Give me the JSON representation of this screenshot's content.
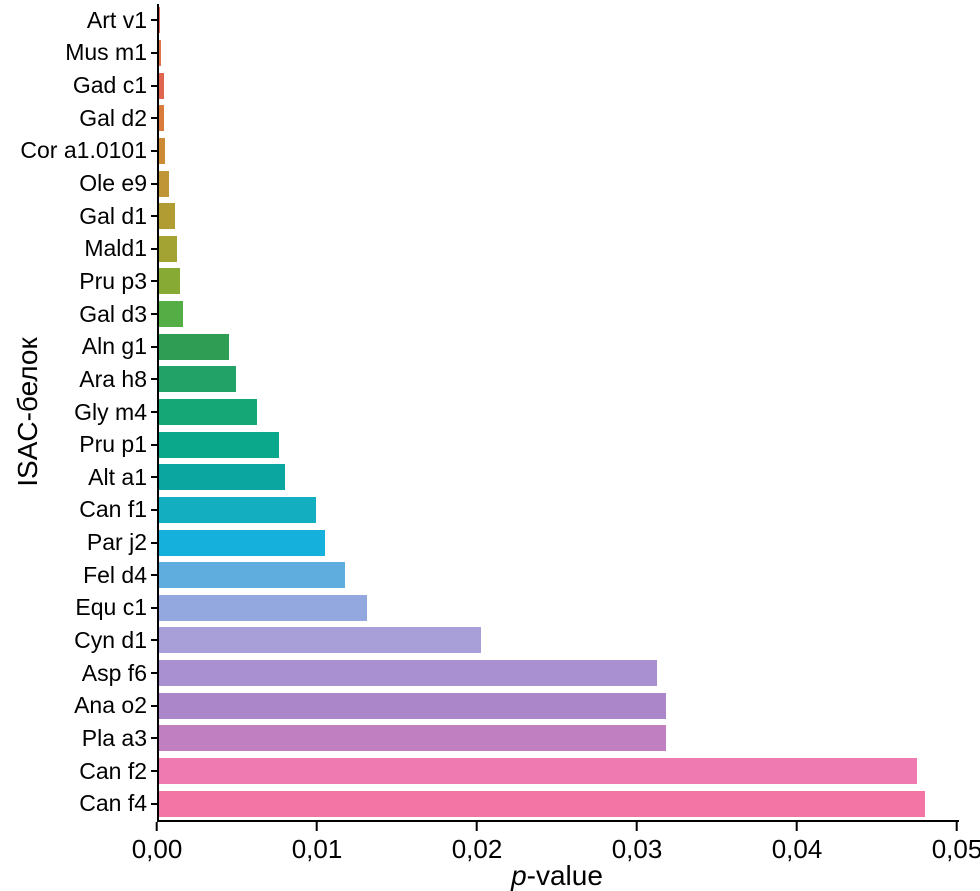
{
  "chart_data": {
    "type": "bar",
    "orientation": "horizontal",
    "title": "",
    "ylabel": "ISAC-белок",
    "xlabel": "p-value",
    "xlabel_italic": "p",
    "xlabel_rest": "-value",
    "xlim": [
      0,
      0.05
    ],
    "grid": false,
    "legend": "none",
    "x_ticks": [
      "0,00",
      "0,01",
      "0,02",
      "0,03",
      "0,04",
      "0,05"
    ],
    "x_tick_values": [
      0,
      0.01,
      0.02,
      0.03,
      0.04,
      0.05
    ],
    "categories": [
      "Art v1",
      "Mus m1",
      "Gad c1",
      "Gal d2",
      "Cor a1.0101",
      "Ole e9",
      "Gal d1",
      "Mald1",
      "Pru p3",
      "Gal d3",
      "Aln g1",
      "Ara h8",
      "Gly m4",
      "Pru p1",
      "Alt a1",
      "Can f1",
      "Par j2",
      "Fel d4",
      "Equ c1",
      "Cyn d1",
      "Asp f6",
      "Ana o2",
      "Pla a3",
      "Can f2",
      "Can f4"
    ],
    "values": [
      5e-05,
      0.0001,
      0.0003,
      0.0003,
      0.0004,
      0.0006,
      0.001,
      0.0011,
      0.0013,
      0.0015,
      0.0044,
      0.0048,
      0.0061,
      0.0075,
      0.0079,
      0.0098,
      0.0104,
      0.0116,
      0.013,
      0.0201,
      0.0311,
      0.0317,
      0.0317,
      0.0474,
      0.0479
    ],
    "colors": [
      "#e66a5b",
      "#e2714f",
      "#e0654f",
      "#d97b3b",
      "#cc8a35",
      "#c09535",
      "#b19c33",
      "#a2a333",
      "#86aa33",
      "#55ae45",
      "#2f9e54",
      "#22a266",
      "#15a876",
      "#0ca88c",
      "#0ba69f",
      "#13aec0",
      "#16b0dc",
      "#5fadde",
      "#92a8de",
      "#a89fd8",
      "#a991d1",
      "#ab87c9",
      "#bf7fc1",
      "#ee7ab1",
      "#f375a6"
    ],
    "axis_color": "#000000"
  }
}
